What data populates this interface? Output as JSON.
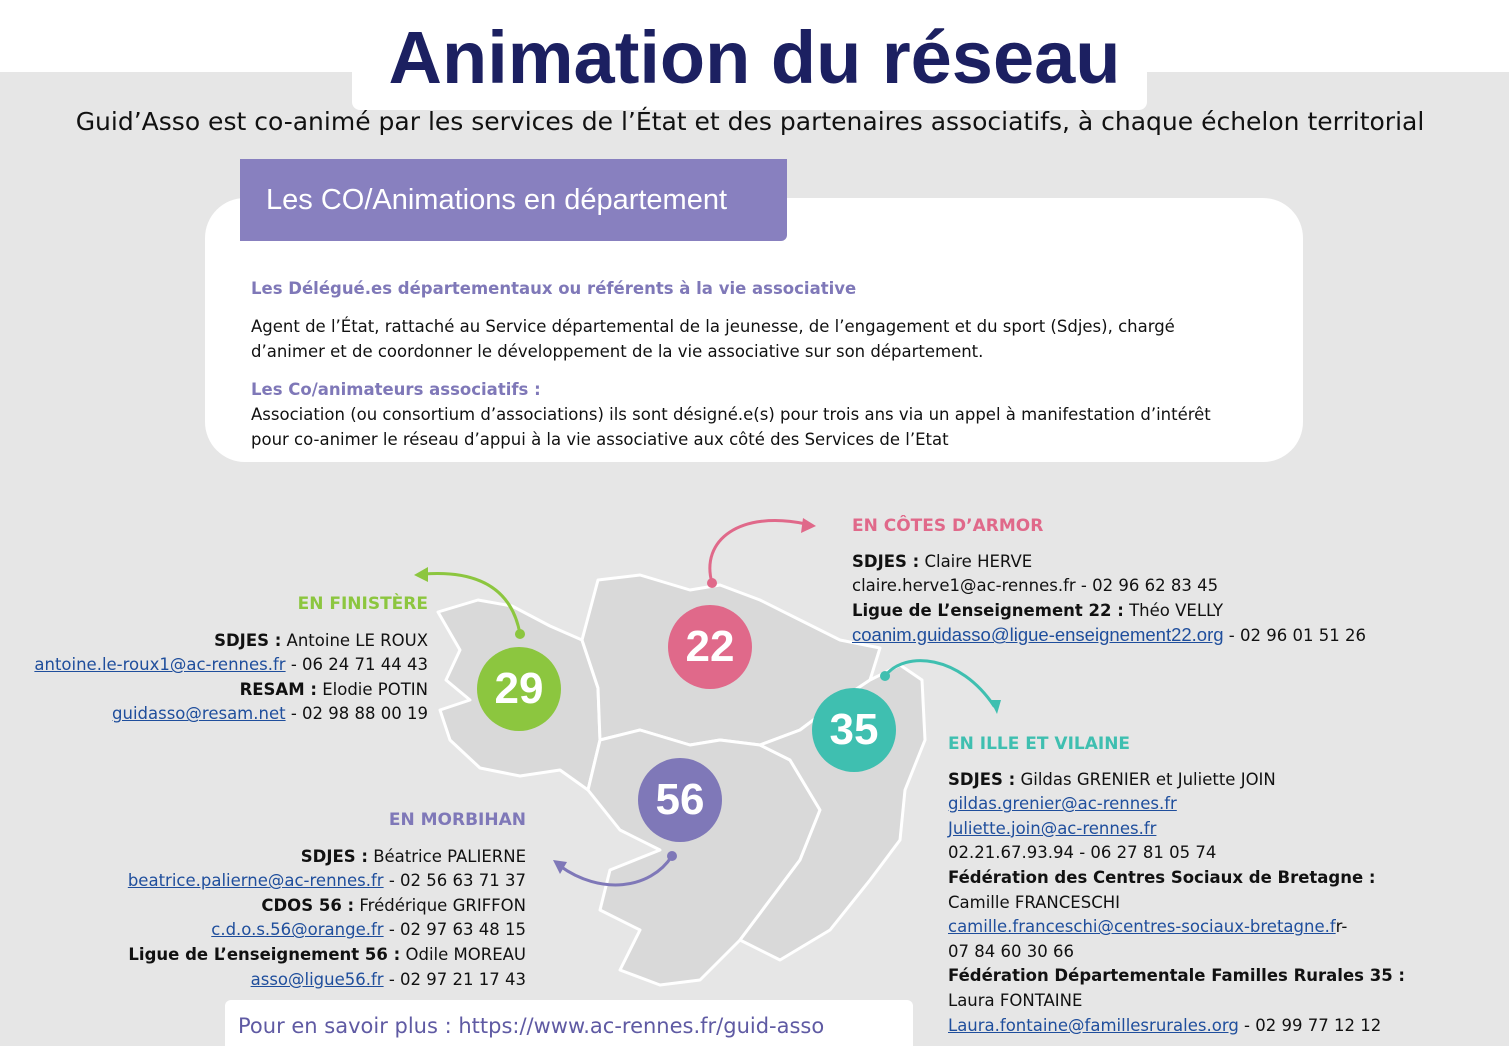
{
  "header": {
    "title": "Animation du réseau",
    "subtitle": "Guid’Asso est co-animé par les services de l’État et des partenaires associatifs, à chaque échelon territorial"
  },
  "card": {
    "tab_label": "Les CO/Animations en département",
    "section1_head": "Les Délégué.es départementaux  ou référents à la vie associative",
    "section1_line1": "Agent de l’État, rattaché au Service départemental de la jeunesse, de l’engagement et du sport (Sdjes), chargé",
    "section1_line2": "d’animer et de coordonner le développement de la vie associative sur son département.",
    "section2_head": "Les Co/animateurs associatifs  :",
    "section2_line1": "Association (ou consortium d’associations) ils sont désigné.e(s) pour trois ans via un appel à manifestation d’intérêt",
    "section2_line2": "pour co-animer le réseau d’appui à la vie associative aux côté des Services de l’Etat"
  },
  "colors": {
    "finistere": "#8cc63f",
    "cotes": "#e0698a",
    "morbihan": "#7f78b8",
    "ille": "#3fbfb0",
    "title": "#1c2061"
  },
  "badges": {
    "finistere": "29",
    "cotes": "22",
    "morbihan": "56",
    "ille": "35"
  },
  "finistere": {
    "head": "EN FINISTÈRE",
    "sdjes_label": "SDJES :",
    "sdjes_name": " Antoine LE ROUX",
    "sdjes_email": "antoine.le-roux1@ac-rennes.fr",
    "sdjes_phone": "  - 06 24 71 44 43",
    "resam_label": "RESAM :",
    "resam_name": "  Elodie POTIN",
    "resam_email": "guidasso@resam.net",
    "resam_phone": " - 02 98 88 00 19"
  },
  "cotes": {
    "head": "EN CÔTES D’ARMOR",
    "sdjes_label": "SDJES :",
    "sdjes_name": "  Claire HERVE",
    "sdjes_contact": "claire.herve1@ac-rennes.fr - 02 96 62 83 45",
    "ligue_label": "Ligue de L’enseignement 22 :",
    "ligue_name": " Théo VELLY",
    "ligue_email": "coanim.guidasso@ligue-enseignement22.org",
    "ligue_phone": " - 02 96 01 51 26"
  },
  "morbihan": {
    "head": "EN MORBIHAN",
    "sdjes_label": "SDJES :",
    "sdjes_name": "  Béatrice PALIERNE",
    "sdjes_email": "beatrice.palierne@ac-rennes.fr",
    "sdjes_phone": "  - 02 56 63 71 37",
    "cdos_label": "CDOS 56 :",
    "cdos_name": "  Frédérique GRIFFON",
    "cdos_email": "c.d.o.s.56@orange.fr",
    "cdos_phone": "  - 02 97 63 48 15",
    "ligue_label": "Ligue de L’enseignement 56 :",
    "ligue_name": "  Odile MOREAU",
    "ligue_email": "asso@ligue56.fr",
    "ligue_phone": "  - 02 97 21 17 43"
  },
  "ille": {
    "head": "EN ILLE ET VILAINE",
    "sdjes_label": "SDJES :",
    "sdjes_name": " Gildas GRENIER  et Juliette JOIN",
    "email1": "gildas.grenier@ac-rennes.fr",
    "email2": "Juliette.join@ac-rennes.fr",
    "phones": "02.21.67.93.94  - 06 27 81 05 74",
    "fcs_label": "Fédération des Centres Sociaux de Bretagne :",
    "fcs_name": "Camille FRANCESCHI",
    "fcs_email": "camille.franceschi@centres-sociaux-bretagne.f",
    "fcs_email_tail": "r-",
    "fcs_phone": "07 84 60 30 66",
    "ffr_label": "Fédération Départementale Familles Rurales 35 :",
    "ffr_name": "Laura FONTAINE",
    "ffr_email": "Laura.fontaine@famillesrurales.org",
    "ffr_phone": " - 02 99 77 12 12"
  },
  "footer": {
    "text": "Pour en savoir plus : https://www.ac-rennes.fr/guid-asso"
  }
}
